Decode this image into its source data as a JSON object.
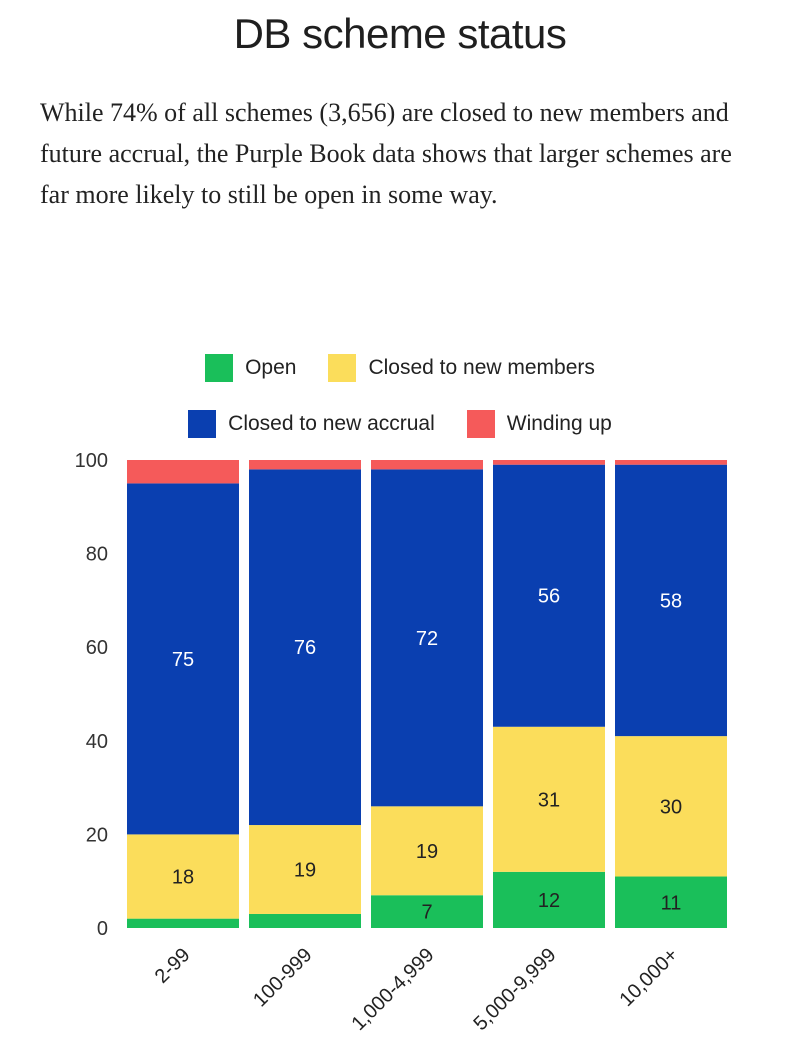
{
  "header": {
    "title": "DB scheme status",
    "subtitle": "While 74% of all schemes (3,656) are closed to new members and future accrual, the Purple Book data shows that larger schemes are far more likely to still be open in some way."
  },
  "chart_data": {
    "type": "bar",
    "stacked": true,
    "categories": [
      "2-99",
      "100-999",
      "1,000-4,999",
      "5,000-9,999",
      "10,000+"
    ],
    "series": [
      {
        "name": "Open",
        "color": "#1abf5a",
        "values": [
          2,
          3,
          7,
          12,
          11
        ],
        "labels": [
          "",
          "",
          "7",
          "12",
          "11"
        ]
      },
      {
        "name": "Closed to new members",
        "color": "#fbdd5b",
        "values": [
          18,
          19,
          19,
          31,
          30
        ],
        "labels": [
          "18",
          "19",
          "19",
          "31",
          "30"
        ]
      },
      {
        "name": "Closed to new accrual",
        "color": "#0a3fb0",
        "values": [
          75,
          76,
          72,
          56,
          58
        ],
        "labels": [
          "75",
          "76",
          "72",
          "56",
          "58"
        ]
      },
      {
        "name": "Winding up",
        "color": "#f55a5a",
        "values": [
          5,
          2,
          2,
          1,
          1
        ],
        "labels": [
          "",
          "",
          "",
          "",
          ""
        ]
      }
    ],
    "ylim": [
      0,
      100
    ],
    "yticks": [
      0,
      20,
      40,
      60,
      80,
      100
    ],
    "xlabel": "",
    "ylabel": "",
    "legend_position": "top"
  }
}
